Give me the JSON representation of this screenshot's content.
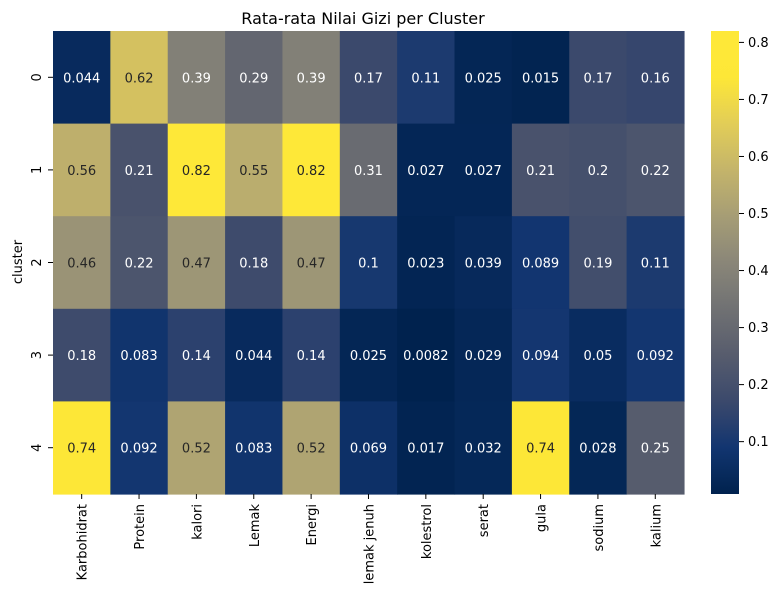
{
  "chart_data": {
    "type": "heatmap",
    "title": "Rata-rata Nilai Gizi per Cluster",
    "ylabel": "cluster",
    "xlabel": "",
    "columns": [
      "Karbohidrat",
      "Protein",
      "kalori",
      "Lemak",
      "Energi",
      "lemak jenuh",
      "kolestrol",
      "serat",
      "gula",
      "sodium",
      "kalium"
    ],
    "rows": [
      "0",
      "1",
      "2",
      "3",
      "4"
    ],
    "values": [
      [
        0.044,
        0.62,
        0.39,
        0.29,
        0.39,
        0.17,
        0.11,
        0.025,
        0.015,
        0.17,
        0.16
      ],
      [
        0.56,
        0.21,
        0.82,
        0.55,
        0.82,
        0.31,
        0.027,
        0.027,
        0.21,
        0.2,
        0.22
      ],
      [
        0.46,
        0.22,
        0.47,
        0.18,
        0.47,
        0.1,
        0.023,
        0.039,
        0.089,
        0.19,
        0.11
      ],
      [
        0.18,
        0.083,
        0.14,
        0.044,
        0.14,
        0.025,
        0.0082,
        0.029,
        0.094,
        0.05,
        0.092
      ],
      [
        0.74,
        0.092,
        0.52,
        0.083,
        0.52,
        0.069,
        0.017,
        0.032,
        0.74,
        0.028,
        0.25
      ]
    ],
    "colormap": "cividis",
    "vmin": 0.0082,
    "vmax": 0.82,
    "colorbar_ticks": [
      0.1,
      0.2,
      0.3,
      0.4,
      0.5,
      0.6,
      0.7,
      0.8
    ],
    "annotations": true,
    "colorbar": "right"
  }
}
